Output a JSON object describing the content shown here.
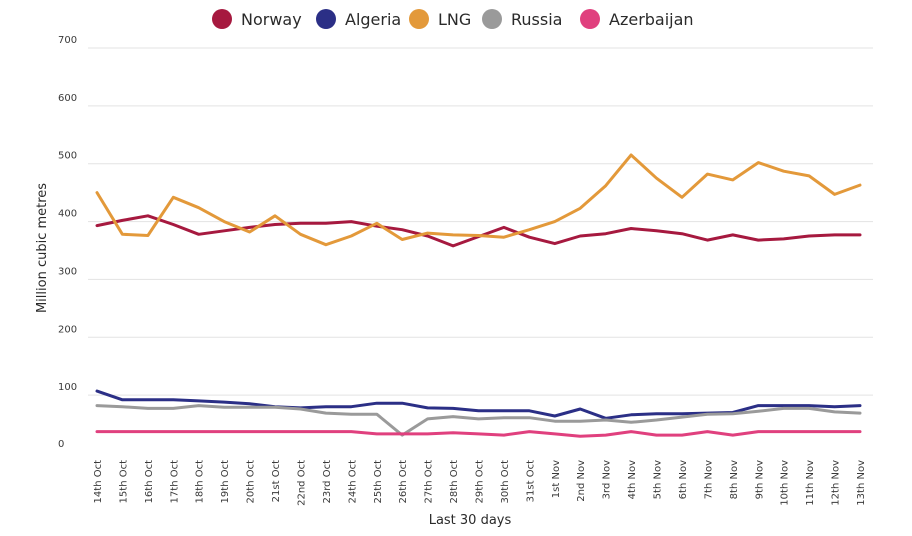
{
  "chart_data": {
    "type": "line",
    "title": "",
    "xlabel": "Last 30 days",
    "ylabel": "Million cubic metres",
    "ylim": [
      0,
      700
    ],
    "yticks": [
      0,
      100,
      200,
      300,
      400,
      500,
      600,
      700
    ],
    "grid": true,
    "legend_position": "top",
    "categories": [
      "14th Oct",
      "15th Oct",
      "16th Oct",
      "17th Oct",
      "18th Oct",
      "19th Oct",
      "20th Oct",
      "21st Oct",
      "22nd Oct",
      "23rd Oct",
      "24th Oct",
      "25th Oct",
      "26th Oct",
      "27th Oct",
      "28th Oct",
      "29th Oct",
      "30th Oct",
      "31st Oct",
      "1st Nov",
      "2nd Nov",
      "3rd Nov",
      "4th Nov",
      "5th Nov",
      "6th Nov",
      "7th Nov",
      "8th Nov",
      "9th Nov",
      "10th Nov",
      "11th Nov",
      "12th Nov",
      "13th Nov"
    ],
    "series": [
      {
        "name": "Norway",
        "color": "#a6193f",
        "values": [
          393,
          402,
          410,
          395,
          378,
          384,
          390,
          395,
          397,
          397,
          400,
          392,
          386,
          375,
          358,
          374,
          390,
          373,
          362,
          375,
          379,
          388,
          384,
          379,
          368,
          377,
          368,
          370,
          375,
          377,
          377
        ]
      },
      {
        "name": "Algeria",
        "color": "#2b2f86",
        "values": [
          107,
          92,
          92,
          92,
          90,
          88,
          85,
          80,
          78,
          80,
          80,
          86,
          86,
          78,
          77,
          73,
          73,
          73,
          64,
          76,
          60,
          66,
          68,
          68,
          69,
          70,
          82,
          82,
          82,
          80,
          82
        ]
      },
      {
        "name": "LNG",
        "color": "#e3993a",
        "values": [
          450,
          378,
          376,
          442,
          424,
          400,
          382,
          410,
          378,
          360,
          375,
          397,
          369,
          380,
          377,
          376,
          373,
          386,
          400,
          423,
          462,
          515,
          475,
          442,
          482,
          472,
          502,
          487,
          479,
          447,
          463
        ]
      },
      {
        "name": "Russia",
        "color": "#9a9a9a",
        "values": [
          82,
          80,
          77,
          77,
          82,
          79,
          79,
          79,
          76,
          69,
          67,
          67,
          31,
          59,
          63,
          59,
          61,
          61,
          55,
          55,
          57,
          53,
          57,
          62,
          67,
          68,
          72,
          77,
          77,
          71,
          69
        ]
      },
      {
        "name": "Azerbaijan",
        "color": "#e0407e",
        "values": [
          37,
          37,
          37,
          37,
          37,
          37,
          37,
          37,
          37,
          37,
          37,
          33,
          33,
          33,
          35,
          33,
          31,
          37,
          33,
          29,
          31,
          37,
          31,
          31,
          37,
          31,
          37,
          37,
          37,
          37,
          37
        ]
      }
    ]
  }
}
